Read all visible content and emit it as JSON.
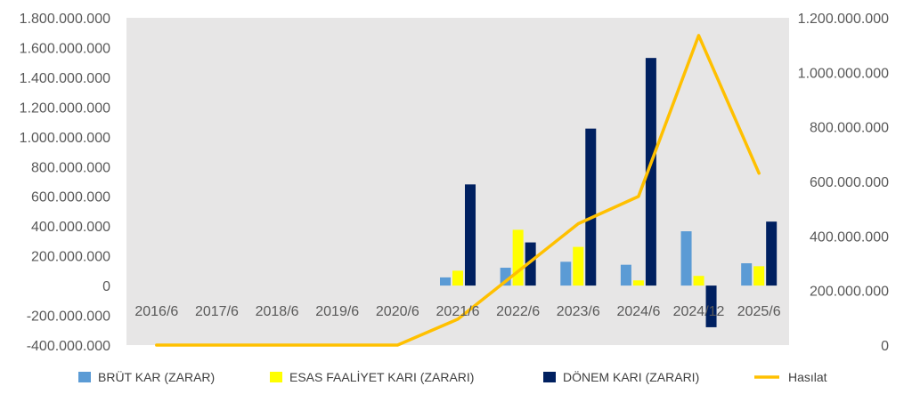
{
  "chart_data": {
    "type": "bar",
    "title": "",
    "categories": [
      "2016/6",
      "2017/6",
      "2018/6",
      "2019/6",
      "2020/6",
      "2021/6",
      "2022/6",
      "2023/6",
      "2024/6",
      "2024/12",
      "2025/6"
    ],
    "y_left": {
      "min": -400000000,
      "max": 1800000000,
      "ticks": [
        -400000000,
        -200000000,
        0,
        200000000,
        400000000,
        600000000,
        800000000,
        1000000000,
        1200000000,
        1400000000,
        1600000000,
        1800000000
      ],
      "tick_labels": [
        "-400.000.000",
        "-200.000.000",
        "0",
        "200.000.000",
        "400.000.000",
        "600.000.000",
        "800.000.000",
        "1.000.000.000",
        "1.200.000.000",
        "1.400.000.000",
        "1.600.000.000",
        "1.800.000.000"
      ]
    },
    "y_right": {
      "min": 0,
      "max": 1200000000,
      "ticks": [
        0,
        200000000,
        400000000,
        600000000,
        800000000,
        1000000000,
        1200000000
      ],
      "tick_labels": [
        "0",
        "200.000.000",
        "400.000.000",
        "600.000.000",
        "800.000.000",
        "1.000.000.000",
        "1.200.000.000"
      ]
    },
    "series": [
      {
        "name": "BRÜT KAR (ZARAR)",
        "kind": "bar",
        "axis": "left",
        "color": "#5B9BD5",
        "values": [
          0,
          0,
          0,
          0,
          0,
          55000000,
          120000000,
          160000000,
          140000000,
          365000000,
          150000000
        ]
      },
      {
        "name": "ESAS FAALİYET KARI (ZARARI)",
        "kind": "bar",
        "axis": "left",
        "color": "#FFFF00",
        "values": [
          0,
          0,
          0,
          0,
          0,
          100000000,
          375000000,
          260000000,
          35000000,
          65000000,
          130000000
        ]
      },
      {
        "name": "DÖNEM KARI (ZARARI)",
        "kind": "bar",
        "axis": "left",
        "color": "#002060",
        "values": [
          0,
          0,
          0,
          0,
          0,
          680000000,
          290000000,
          1055000000,
          1530000000,
          -280000000,
          430000000
        ]
      },
      {
        "name": "Hasılat",
        "kind": "line",
        "axis": "right",
        "color": "#FFC000",
        "values": [
          0,
          0,
          0,
          0,
          0,
          95000000,
          270000000,
          445000000,
          545000000,
          1135000000,
          630000000
        ]
      }
    ],
    "legend": {
      "position": "bottom",
      "items": [
        "BRÜT KAR (ZARAR)",
        "ESAS FAALİYET KARI (ZARARI)",
        "DÖNEM KARI (ZARARI)",
        "Hasılat"
      ]
    },
    "plot_background": "#E7E6E6",
    "grid": false
  }
}
